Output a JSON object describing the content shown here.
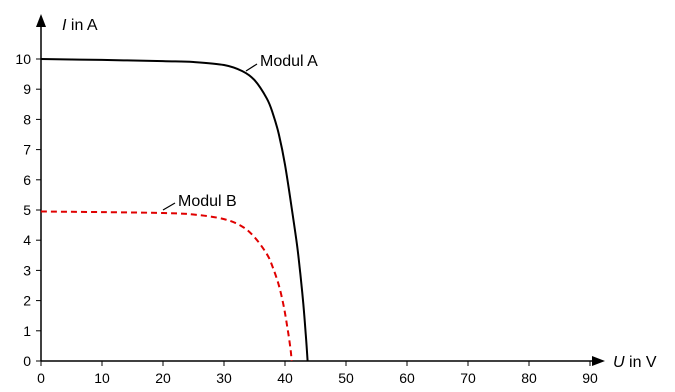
{
  "chart_data": {
    "type": "line",
    "x_axis": {
      "symbol": "U",
      "unit_text": " in V",
      "range": [
        0,
        90
      ],
      "ticks": [
        0,
        10,
        20,
        30,
        40,
        50,
        60,
        70,
        80,
        90
      ]
    },
    "y_axis": {
      "symbol": "I",
      "unit_text": " in A",
      "range": [
        0,
        10
      ],
      "ticks": [
        0,
        1,
        2,
        3,
        4,
        5,
        6,
        7,
        8,
        9,
        10
      ]
    },
    "grid": false,
    "series": [
      {
        "name": "Modul A",
        "color": "#000000",
        "dash": "solid",
        "points": [
          [
            0,
            10.0
          ],
          [
            10,
            9.97
          ],
          [
            20,
            9.93
          ],
          [
            25,
            9.9
          ],
          [
            30,
            9.8
          ],
          [
            33,
            9.6
          ],
          [
            35,
            9.3
          ],
          [
            37,
            8.7
          ],
          [
            38,
            8.2
          ],
          [
            39,
            7.5
          ],
          [
            40,
            6.5
          ],
          [
            41,
            5.2
          ],
          [
            42,
            3.8
          ],
          [
            42.5,
            2.9
          ],
          [
            43,
            1.9
          ],
          [
            43.4,
            0.9
          ],
          [
            43.7,
            0
          ]
        ]
      },
      {
        "name": "Modul B",
        "color": "#e00000",
        "dash": "dashed",
        "points": [
          [
            0,
            4.95
          ],
          [
            10,
            4.93
          ],
          [
            20,
            4.9
          ],
          [
            25,
            4.85
          ],
          [
            30,
            4.7
          ],
          [
            33,
            4.45
          ],
          [
            35,
            4.1
          ],
          [
            37,
            3.55
          ],
          [
            38,
            3.1
          ],
          [
            39,
            2.5
          ],
          [
            39.8,
            1.8
          ],
          [
            40.4,
            1.1
          ],
          [
            40.9,
            0.4
          ],
          [
            41.1,
            0
          ]
        ]
      }
    ]
  }
}
